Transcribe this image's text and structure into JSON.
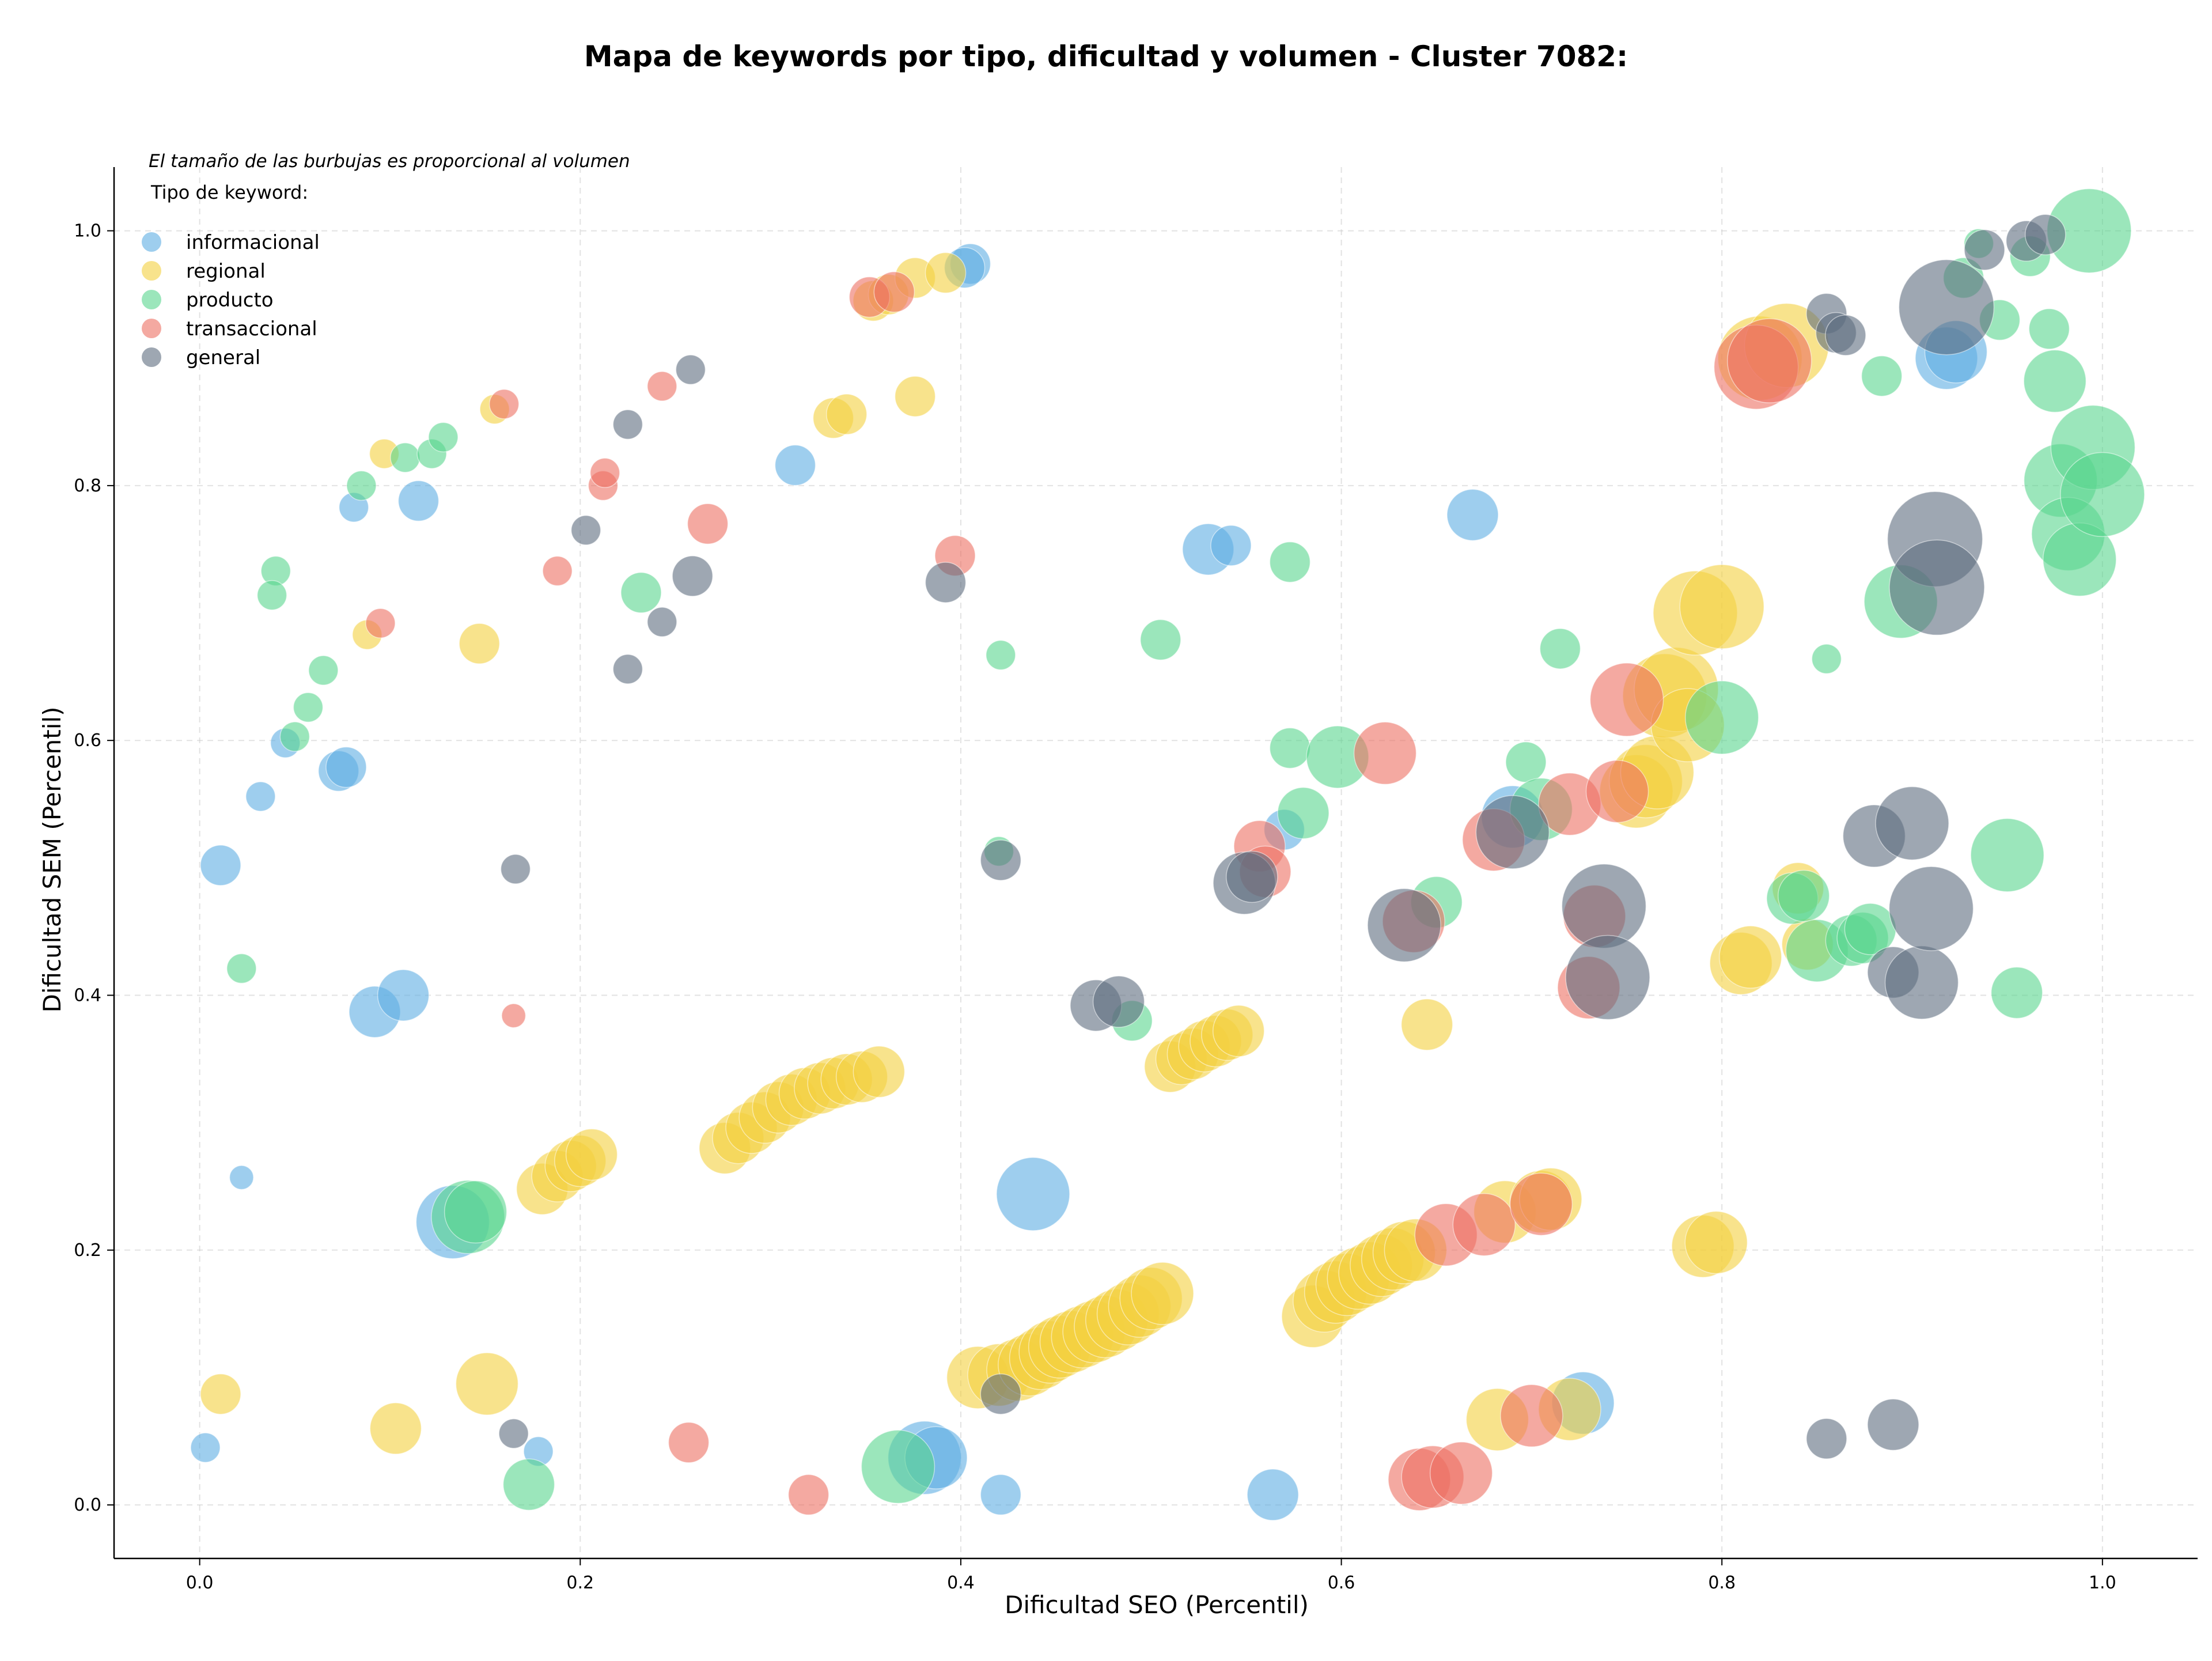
{
  "chart_data": {
    "type": "scatter",
    "title": "Mapa de keywords por tipo, dificultad y volumen - Cluster 7082:",
    "xlabel": "Dificultad SEO (Percentil)",
    "ylabel": "Dificultad SEM (Percentil)",
    "xlim": [
      -0.045,
      1.05
    ],
    "ylim": [
      -0.042,
      1.05
    ],
    "xticks": [
      "0.0",
      "0.2",
      "0.4",
      "0.6",
      "0.8",
      "1.0"
    ],
    "yticks": [
      "0.0",
      "0.2",
      "0.4",
      "0.6",
      "0.8",
      "1.0"
    ],
    "grid": true,
    "size_note": "El tamaño de las burbujas es proporcional al volumen",
    "legend_title": "Tipo de keyword:",
    "legend_position": "top-left",
    "series": [
      {
        "name": "informacional",
        "color": "#5DADE2",
        "points": [
          [
            0.003,
            0.045,
            1
          ],
          [
            0.011,
            0.502,
            2
          ],
          [
            0.022,
            0.257,
            0.5
          ],
          [
            0.032,
            0.556,
            1
          ],
          [
            0.045,
            0.598,
            1
          ],
          [
            0.073,
            0.576,
            2
          ],
          [
            0.077,
            0.579,
            2
          ],
          [
            0.081,
            0.783,
            1
          ],
          [
            0.115,
            0.788,
            2
          ],
          [
            0.092,
            0.387,
            3
          ],
          [
            0.107,
            0.4,
            3
          ],
          [
            0.133,
            0.222,
            5
          ],
          [
            0.178,
            0.042,
            1
          ],
          [
            0.313,
            0.816,
            2
          ],
          [
            0.381,
            0.037,
            5
          ],
          [
            0.387,
            0.037,
            4
          ],
          [
            0.405,
            0.974,
            2
          ],
          [
            0.402,
            0.971,
            2
          ],
          [
            0.421,
            0.008,
            2
          ],
          [
            0.438,
            0.244,
            5
          ],
          [
            0.53,
            0.75,
            3
          ],
          [
            0.542,
            0.753,
            2
          ],
          [
            0.564,
            0.008,
            3
          ],
          [
            0.57,
            0.53,
            2
          ],
          [
            0.669,
            0.777,
            3
          ],
          [
            0.69,
            0.54,
            4
          ],
          [
            0.727,
            0.08,
            4
          ],
          [
            0.918,
            0.9,
            4
          ],
          [
            0.923,
            0.905,
            4
          ]
        ]
      },
      {
        "name": "regional",
        "color": "#F4D03F",
        "points": [
          [
            0.011,
            0.087,
            2
          ],
          [
            0.103,
            0.06,
            3
          ],
          [
            0.097,
            0.825,
            1
          ],
          [
            0.088,
            0.683,
            1
          ],
          [
            0.147,
            0.676,
            2
          ],
          [
            0.151,
            0.095,
            4
          ],
          [
            0.155,
            0.86,
            1
          ],
          [
            0.18,
            0.248,
            3
          ],
          [
            0.188,
            0.258,
            3
          ],
          [
            0.195,
            0.266,
            3
          ],
          [
            0.2,
            0.27,
            3
          ],
          [
            0.206,
            0.275,
            3
          ],
          [
            0.276,
            0.28,
            3
          ],
          [
            0.283,
            0.288,
            3
          ],
          [
            0.29,
            0.296,
            3
          ],
          [
            0.297,
            0.304,
            3
          ],
          [
            0.304,
            0.312,
            3
          ],
          [
            0.311,
            0.318,
            3
          ],
          [
            0.318,
            0.323,
            3
          ],
          [
            0.326,
            0.327,
            3
          ],
          [
            0.333,
            0.331,
            3
          ],
          [
            0.34,
            0.334,
            3
          ],
          [
            0.348,
            0.336,
            3
          ],
          [
            0.357,
            0.34,
            3
          ],
          [
            0.333,
            0.853,
            2
          ],
          [
            0.34,
            0.856,
            2
          ],
          [
            0.354,
            0.945,
            2
          ],
          [
            0.362,
            0.95,
            2
          ],
          [
            0.376,
            0.963,
            2
          ],
          [
            0.376,
            0.87,
            2
          ],
          [
            0.392,
            0.967,
            2
          ],
          [
            0.409,
            0.1,
            4
          ],
          [
            0.42,
            0.102,
            4
          ],
          [
            0.43,
            0.106,
            4
          ],
          [
            0.436,
            0.11,
            4
          ],
          [
            0.442,
            0.115,
            4
          ],
          [
            0.447,
            0.12,
            4
          ],
          [
            0.452,
            0.124,
            4
          ],
          [
            0.458,
            0.128,
            4
          ],
          [
            0.464,
            0.132,
            4
          ],
          [
            0.47,
            0.136,
            4
          ],
          [
            0.476,
            0.14,
            4
          ],
          [
            0.482,
            0.145,
            4
          ],
          [
            0.488,
            0.15,
            4
          ],
          [
            0.494,
            0.156,
            4
          ],
          [
            0.5,
            0.162,
            4
          ],
          [
            0.506,
            0.166,
            4
          ],
          [
            0.51,
            0.344,
            3
          ],
          [
            0.516,
            0.35,
            3
          ],
          [
            0.522,
            0.354,
            3
          ],
          [
            0.528,
            0.36,
            3
          ],
          [
            0.534,
            0.364,
            3
          ],
          [
            0.54,
            0.369,
            3
          ],
          [
            0.546,
            0.372,
            3
          ],
          [
            0.585,
            0.148,
            4
          ],
          [
            0.591,
            0.16,
            4
          ],
          [
            0.597,
            0.167,
            4
          ],
          [
            0.603,
            0.173,
            4
          ],
          [
            0.609,
            0.178,
            4
          ],
          [
            0.615,
            0.182,
            4
          ],
          [
            0.621,
            0.188,
            4
          ],
          [
            0.627,
            0.193,
            4
          ],
          [
            0.633,
            0.198,
            4
          ],
          [
            0.639,
            0.2,
            4
          ],
          [
            0.645,
            0.377,
            3
          ],
          [
            0.682,
            0.067,
            4
          ],
          [
            0.686,
            0.23,
            4
          ],
          [
            0.705,
            0.238,
            4
          ],
          [
            0.71,
            0.24,
            4
          ],
          [
            0.72,
            0.075,
            4
          ],
          [
            0.755,
            0.56,
            5
          ],
          [
            0.76,
            0.568,
            5
          ],
          [
            0.766,
            0.575,
            5
          ],
          [
            0.77,
            0.635,
            6
          ],
          [
            0.776,
            0.64,
            6
          ],
          [
            0.782,
            0.612,
            5
          ],
          [
            0.786,
            0.7,
            6
          ],
          [
            0.79,
            0.203,
            4
          ],
          [
            0.797,
            0.206,
            4
          ],
          [
            0.8,
            0.705,
            6
          ],
          [
            0.81,
            0.425,
            4
          ],
          [
            0.815,
            0.43,
            4
          ],
          [
            0.82,
            0.9,
            6
          ],
          [
            0.834,
            0.91,
            6
          ],
          [
            0.84,
            0.484,
            3
          ],
          [
            0.845,
            0.44,
            3
          ]
        ]
      },
      {
        "name": "producto",
        "color": "#58D68D",
        "points": [
          [
            0.022,
            0.421,
            1
          ],
          [
            0.04,
            0.733,
            1
          ],
          [
            0.038,
            0.714,
            1
          ],
          [
            0.05,
            0.603,
            1
          ],
          [
            0.057,
            0.626,
            1
          ],
          [
            0.065,
            0.655,
            1
          ],
          [
            0.085,
            0.8,
            1
          ],
          [
            0.108,
            0.822,
            1
          ],
          [
            0.122,
            0.825,
            1
          ],
          [
            0.128,
            0.838,
            1
          ],
          [
            0.141,
            0.226,
            5
          ],
          [
            0.145,
            0.23,
            4
          ],
          [
            0.173,
            0.016,
            3
          ],
          [
            0.232,
            0.716,
            2
          ],
          [
            0.367,
            0.03,
            5
          ],
          [
            0.42,
            0.513,
            1
          ],
          [
            0.421,
            0.667,
            1
          ],
          [
            0.49,
            0.38,
            2
          ],
          [
            0.505,
            0.679,
            2
          ],
          [
            0.573,
            0.74,
            2
          ],
          [
            0.573,
            0.594,
            2
          ],
          [
            0.58,
            0.543,
            3
          ],
          [
            0.598,
            0.587,
            4
          ],
          [
            0.65,
            0.473,
            3
          ],
          [
            0.697,
            0.583,
            2
          ],
          [
            0.705,
            0.546,
            4
          ],
          [
            0.715,
            0.672,
            2
          ],
          [
            0.8,
            0.618,
            5
          ],
          [
            0.837,
            0.476,
            3
          ],
          [
            0.843,
            0.478,
            3
          ],
          [
            0.85,
            0.435,
            4
          ],
          [
            0.868,
            0.443,
            3
          ],
          [
            0.874,
            0.445,
            3
          ],
          [
            0.878,
            0.452,
            3
          ],
          [
            0.855,
            0.664,
            1
          ],
          [
            0.884,
            0.886,
            2
          ],
          [
            0.894,
            0.709,
            5
          ],
          [
            0.927,
            0.963,
            2
          ],
          [
            0.935,
            0.99,
            1
          ],
          [
            0.946,
            0.93,
            2
          ],
          [
            0.95,
            0.51,
            5
          ],
          [
            0.955,
            0.402,
            3
          ],
          [
            0.962,
            0.98,
            2
          ],
          [
            0.972,
            0.923,
            2
          ],
          [
            0.975,
            0.882,
            4
          ],
          [
            0.978,
            0.804,
            5
          ],
          [
            0.982,
            0.762,
            5
          ],
          [
            0.988,
            0.742,
            5
          ],
          [
            0.993,
            1.0,
            6
          ],
          [
            0.995,
            0.83,
            6
          ],
          [
            1.0,
            0.793,
            6
          ]
        ]
      },
      {
        "name": "transaccional",
        "color": "#EC7063",
        "points": [
          [
            0.095,
            0.692,
            1
          ],
          [
            0.16,
            0.864,
            1
          ],
          [
            0.165,
            0.384,
            0.5
          ],
          [
            0.188,
            0.733,
            1
          ],
          [
            0.212,
            0.8,
            1
          ],
          [
            0.213,
            0.81,
            1
          ],
          [
            0.243,
            0.878,
            1
          ],
          [
            0.257,
            0.049,
            2
          ],
          [
            0.267,
            0.77,
            2
          ],
          [
            0.32,
            0.008,
            2
          ],
          [
            0.352,
            0.948,
            2
          ],
          [
            0.365,
            0.952,
            2
          ],
          [
            0.397,
            0.745,
            2
          ],
          [
            0.557,
            0.517,
            3
          ],
          [
            0.56,
            0.497,
            3
          ],
          [
            0.623,
            0.59,
            4
          ],
          [
            0.638,
            0.458,
            4
          ],
          [
            0.641,
            0.02,
            4
          ],
          [
            0.648,
            0.022,
            4
          ],
          [
            0.655,
            0.212,
            4
          ],
          [
            0.663,
            0.025,
            4
          ],
          [
            0.675,
            0.22,
            4
          ],
          [
            0.68,
            0.522,
            4
          ],
          [
            0.7,
            0.07,
            4
          ],
          [
            0.705,
            0.236,
            4
          ],
          [
            0.72,
            0.55,
            4
          ],
          [
            0.73,
            0.406,
            4
          ],
          [
            0.733,
            0.462,
            4
          ],
          [
            0.745,
            0.56,
            4
          ],
          [
            0.75,
            0.632,
            5
          ],
          [
            0.818,
            0.893,
            6
          ],
          [
            0.825,
            0.898,
            6
          ]
        ]
      },
      {
        "name": "general",
        "color": "#5D6D7E",
        "points": [
          [
            0.165,
            0.056,
            1
          ],
          [
            0.166,
            0.499,
            1
          ],
          [
            0.203,
            0.765,
            1
          ],
          [
            0.225,
            0.656,
            1
          ],
          [
            0.225,
            0.848,
            1
          ],
          [
            0.243,
            0.693,
            1
          ],
          [
            0.258,
            0.891,
            1
          ],
          [
            0.259,
            0.729,
            2
          ],
          [
            0.392,
            0.724,
            2
          ],
          [
            0.421,
            0.506,
            2
          ],
          [
            0.421,
            0.087,
            2
          ],
          [
            0.471,
            0.392,
            3
          ],
          [
            0.483,
            0.395,
            3
          ],
          [
            0.549,
            0.488,
            4
          ],
          [
            0.553,
            0.493,
            3
          ],
          [
            0.633,
            0.455,
            5
          ],
          [
            0.69,
            0.528,
            5
          ],
          [
            0.738,
            0.47,
            6
          ],
          [
            0.74,
            0.414,
            6
          ],
          [
            0.855,
            0.052,
            2
          ],
          [
            0.855,
            0.935,
            2
          ],
          [
            0.86,
            0.92,
            2
          ],
          [
            0.865,
            0.918,
            2
          ],
          [
            0.88,
            0.525,
            4
          ],
          [
            0.89,
            0.063,
            3
          ],
          [
            0.89,
            0.418,
            3
          ],
          [
            0.9,
            0.535,
            5
          ],
          [
            0.905,
            0.41,
            5
          ],
          [
            0.91,
            0.468,
            6
          ],
          [
            0.912,
            0.758,
            7
          ],
          [
            0.913,
            0.72,
            7
          ],
          [
            0.918,
            0.94,
            7
          ],
          [
            0.938,
            0.985,
            2
          ],
          [
            0.96,
            0.992,
            2
          ],
          [
            0.97,
            0.997,
            2
          ]
        ]
      }
    ]
  }
}
